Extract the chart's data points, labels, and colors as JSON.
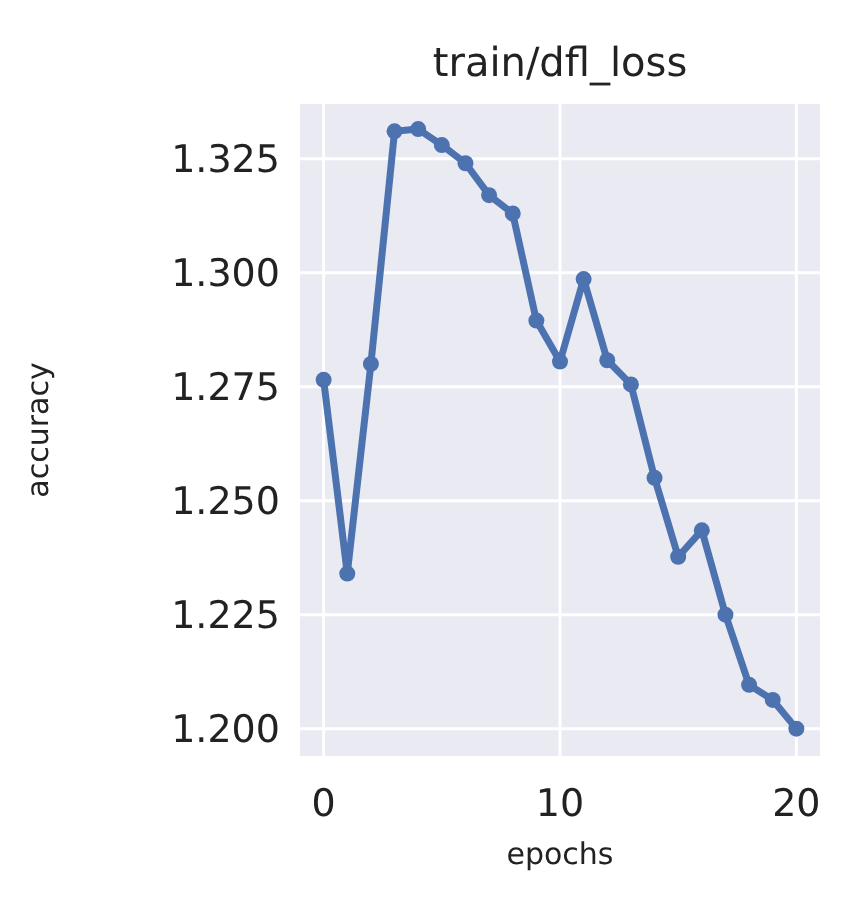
{
  "chart_data": {
    "type": "line",
    "title": "train/dfl_loss",
    "xlabel": "epochs",
    "ylabel": "accuracy",
    "x": [
      0,
      1,
      2,
      3,
      4,
      5,
      6,
      7,
      8,
      9,
      10,
      11,
      12,
      13,
      14,
      15,
      16,
      17,
      18,
      19,
      20
    ],
    "series": [
      {
        "color": "#4c72b0",
        "values": [
          1.2765,
          1.234,
          1.28,
          1.331,
          1.3315,
          1.328,
          1.324,
          1.317,
          1.313,
          1.2895,
          1.2805,
          1.2986,
          1.2808,
          1.2755,
          1.255,
          1.2377,
          1.2435,
          1.225,
          1.2096,
          1.2063,
          1.2
        ]
      }
    ],
    "xlim": [
      -1,
      21
    ],
    "xticks": [
      0,
      10,
      20
    ],
    "ylim": [
      1.194,
      1.337
    ],
    "yticks": [
      {
        "value": 1.2,
        "label": "1.200"
      },
      {
        "value": 1.225,
        "label": "1.225"
      },
      {
        "value": 1.25,
        "label": "1.250"
      },
      {
        "value": 1.275,
        "label": "1.275"
      },
      {
        "value": 1.3,
        "label": "1.300"
      },
      {
        "value": 1.325,
        "label": "1.325"
      }
    ],
    "grid": true,
    "marker": "circle",
    "line_style": "solid"
  }
}
